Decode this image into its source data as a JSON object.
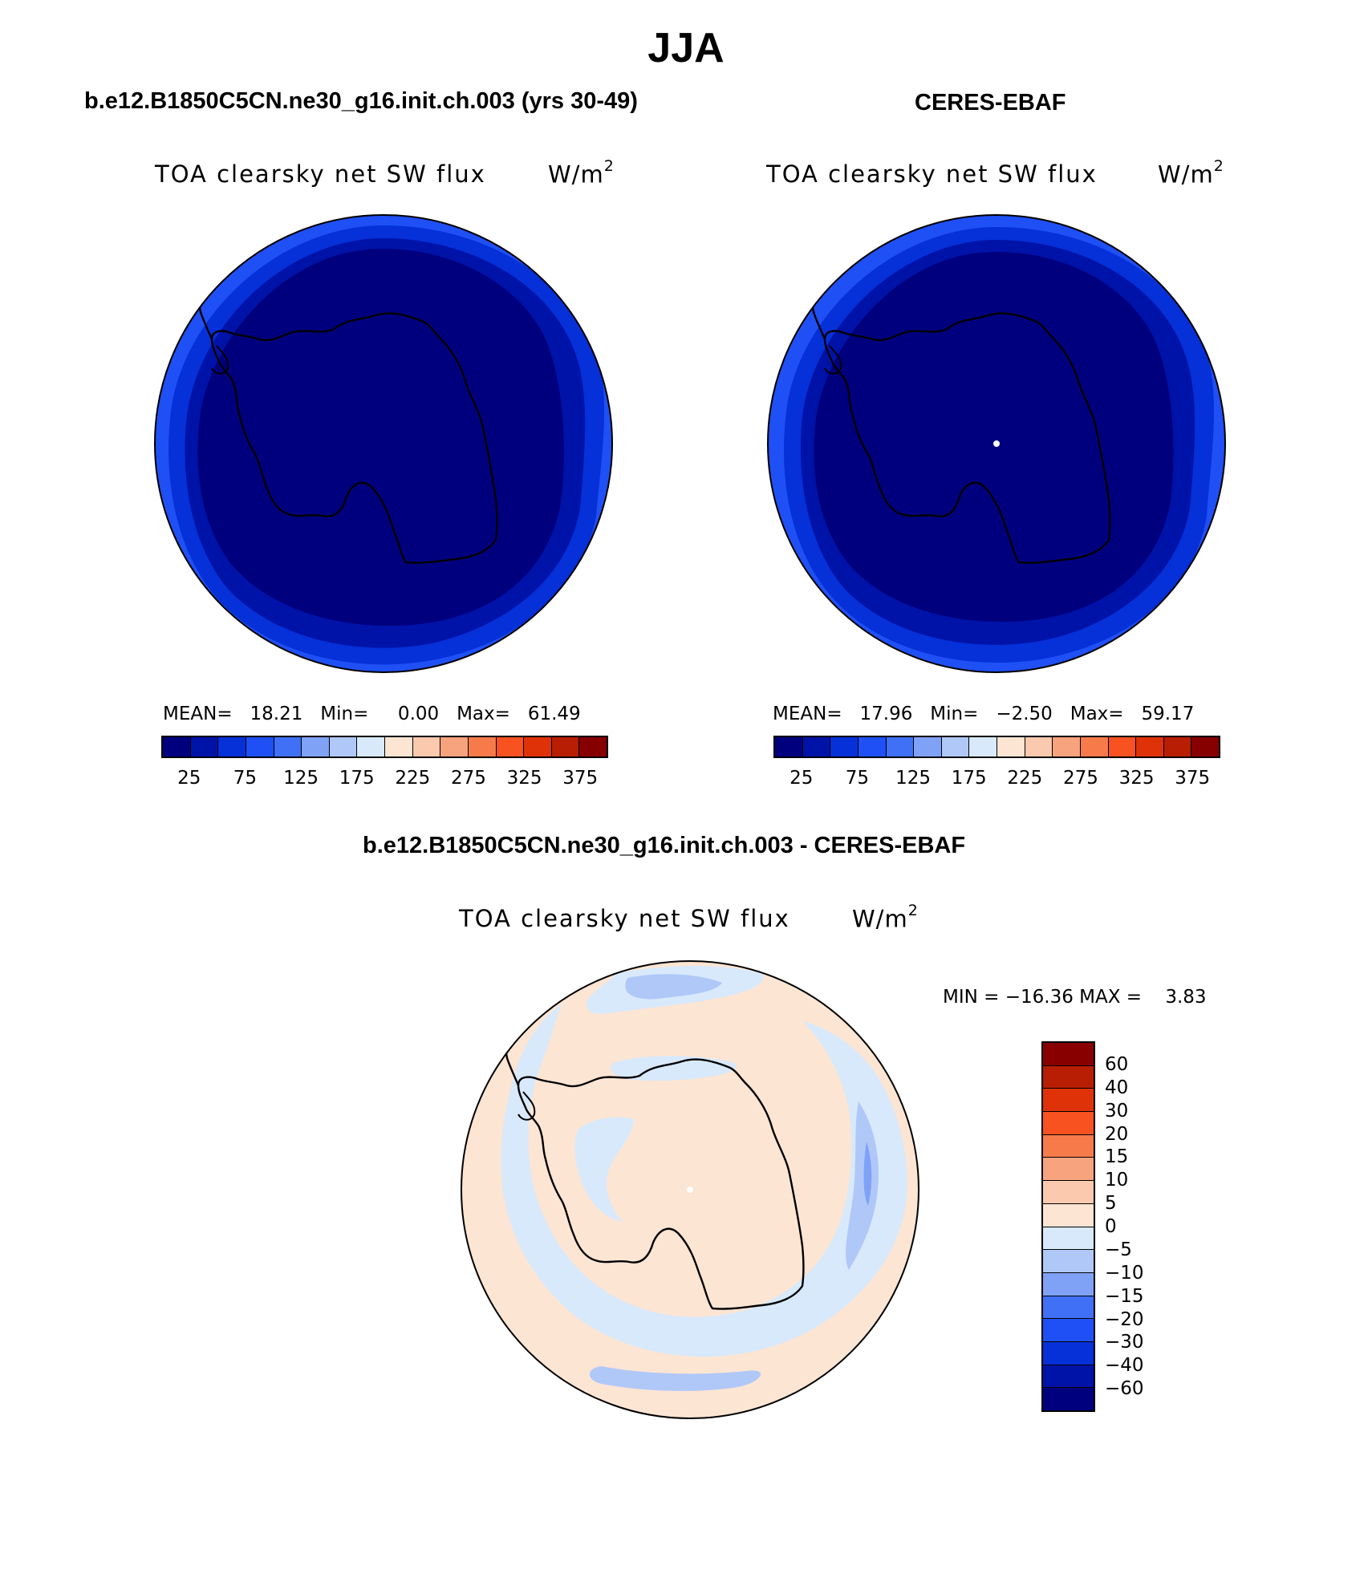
{
  "figure": {
    "title": "JJA",
    "top_left": {
      "title": "b.e12.B1850C5CN.ne30_g16.init.ch.003 (yrs 30-49)",
      "variable": "TOA clearsky net SW flux",
      "unit": "W/m",
      "unit_sup": "2",
      "stats": "MEAN=   18.21   Min=     0.00   Max=   61.49"
    },
    "top_right": {
      "title": "CERES-EBAF",
      "variable": "TOA clearsky net SW flux",
      "unit": "W/m",
      "unit_sup": "2",
      "stats": "MEAN=   17.96   Min=   −2.50   Max=   59.17"
    },
    "bottom": {
      "title": "b.e12.B1850C5CN.ne30_g16.init.ch.003 - CERES-EBAF",
      "variable": "TOA clearsky net SW flux",
      "unit": "W/m",
      "unit_sup": "2",
      "minmax": "MIN = −16.36 MAX =    3.83"
    }
  },
  "colorbar_top": {
    "colors": [
      "#00007f",
      "#0013a8",
      "#0630d8",
      "#1f50f5",
      "#3f70f5",
      "#7fa2f7",
      "#b0c8f8",
      "#d8e9fb",
      "#fde5d3",
      "#fbc9ae",
      "#f7a37e",
      "#f77a4b",
      "#f7521f",
      "#e03209",
      "#b81e03",
      "#860000"
    ],
    "labels": [
      "25",
      "75",
      "125",
      "175",
      "225",
      "275",
      "325",
      "375"
    ]
  },
  "colorbar_diff": {
    "colors_top_to_bottom": [
      "#880000",
      "#b81e03",
      "#e03209",
      "#f7521f",
      "#f77a4b",
      "#f7a37e",
      "#fbc9ae",
      "#fde5d3",
      "#d8e9fb",
      "#b0c8f8",
      "#7fa2f7",
      "#3f70f5",
      "#1f50f5",
      "#0630d8",
      "#0013a8",
      "#00007f"
    ],
    "labels": [
      "60",
      "40",
      "30",
      "20",
      "15",
      "10",
      "5",
      "0",
      "−5",
      "−10",
      "−15",
      "−20",
      "−30",
      "−40",
      "−60"
    ]
  },
  "map_colors": {
    "outer_ring": "#1f50f5",
    "mid_ring": "#0630d8",
    "inner": "#0013a8",
    "core": "#00007f",
    "diff_bg": "#fde5d3",
    "diff_neg5": "#d8e9fb",
    "diff_neg10": "#b0c8f8",
    "diff_neg15": "#7fa2f7"
  }
}
